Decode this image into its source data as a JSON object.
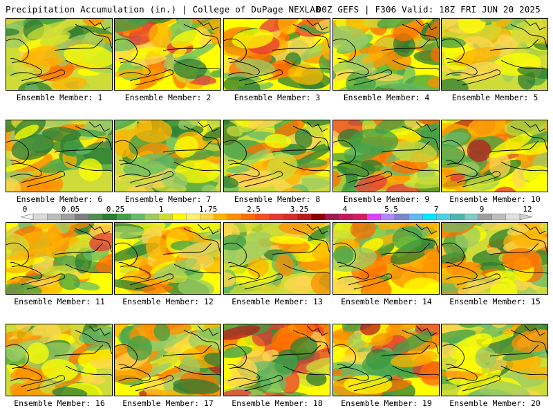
{
  "header": {
    "left": "Precipitation Accumulation (in.) | College of DuPage NEXLAB",
    "right": "00Z GEFS | F306 Valid: 18Z FRI JUN 20 2025"
  },
  "panels": [
    {
      "label": "Ensemble Member: 1",
      "intensity": 0.45,
      "seed": 11
    },
    {
      "label": "Ensemble Member: 2",
      "intensity": 0.6,
      "seed": 23
    },
    {
      "label": "Ensemble Member: 3",
      "intensity": 0.55,
      "seed": 37
    },
    {
      "label": "Ensemble Member: 4",
      "intensity": 0.5,
      "seed": 41
    },
    {
      "label": "Ensemble Member: 5",
      "intensity": 0.3,
      "seed": 53
    },
    {
      "label": "Ensemble Member: 6",
      "intensity": 0.4,
      "seed": 67
    },
    {
      "label": "Ensemble Member: 7",
      "intensity": 0.45,
      "seed": 71
    },
    {
      "label": "Ensemble Member: 8",
      "intensity": 0.45,
      "seed": 83
    },
    {
      "label": "Ensemble Member: 9",
      "intensity": 0.6,
      "seed": 97
    },
    {
      "label": "Ensemble Member: 10",
      "intensity": 0.75,
      "seed": 101
    },
    {
      "label": "Ensemble Member: 11",
      "intensity": 0.6,
      "seed": 113
    },
    {
      "label": "Ensemble Member: 12",
      "intensity": 0.5,
      "seed": 127
    },
    {
      "label": "Ensemble Member: 13",
      "intensity": 0.4,
      "seed": 131
    },
    {
      "label": "Ensemble Member: 14",
      "intensity": 0.5,
      "seed": 149
    },
    {
      "label": "Ensemble Member: 15",
      "intensity": 0.45,
      "seed": 151
    },
    {
      "label": "Ensemble Member: 16",
      "intensity": 0.4,
      "seed": 163
    },
    {
      "label": "Ensemble Member: 17",
      "intensity": 0.7,
      "seed": 173
    },
    {
      "label": "Ensemble Member: 18",
      "intensity": 0.65,
      "seed": 181
    },
    {
      "label": "Ensemble Member: 19",
      "intensity": 0.7,
      "seed": 191
    },
    {
      "label": "Ensemble Member: 20",
      "intensity": 0.3,
      "seed": 199
    }
  ],
  "colorbar": {
    "labels": [
      "0",
      "0.05",
      "0.25",
      "1",
      "1.75",
      "2.5",
      "3.25",
      "4",
      "5.5",
      "7",
      "9",
      "12"
    ],
    "colors": [
      "#d9d9d9",
      "#bdbdbd",
      "#a0a0a0",
      "#7f7f7f",
      "#4f8f4f",
      "#2e7d32",
      "#43a047",
      "#66bb6a",
      "#9ccc65",
      "#cddc39",
      "#ffff00",
      "#fff176",
      "#ffd54f",
      "#ffb300",
      "#ff8f00",
      "#ff6f00",
      "#f4511e",
      "#e53935",
      "#d32f2f",
      "#b71c1c",
      "#8b0000",
      "#9c1c4f",
      "#c2185b",
      "#d81b60",
      "#e040fb",
      "#b388ff",
      "#7986cb",
      "#64b5f6",
      "#00e5ff",
      "#4dd0e1",
      "#4db6ac",
      "#80cbc4",
      "#9e9e9e",
      "#bdbdbd",
      "#e0e0e0"
    ]
  },
  "map_palette": [
    "#2e7d32",
    "#43a047",
    "#66bb6a",
    "#9ccc65",
    "#cddc39",
    "#ffff00",
    "#ffd54f",
    "#ffb300",
    "#ff8f00",
    "#ff6f00",
    "#e53935",
    "#b71c1c",
    "#8b0000",
    "#c2185b",
    "#e040fb",
    "#4dd0e1"
  ]
}
